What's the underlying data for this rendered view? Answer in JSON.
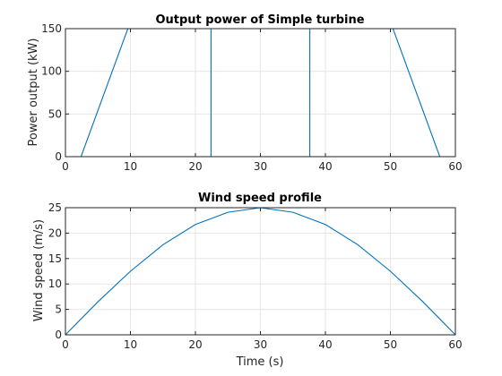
{
  "chart_data": [
    {
      "type": "line",
      "title": "Output power of Simple turbine",
      "xlabel": "",
      "ylabel": "Power output (kW)",
      "xlim": [
        0,
        60
      ],
      "ylim": [
        0,
        150
      ],
      "xticks": [
        "0",
        "10",
        "20",
        "30",
        "40",
        "50",
        "60"
      ],
      "yticks": [
        "0",
        "50",
        "100",
        "150"
      ],
      "grid": true,
      "series": [
        {
          "color": "#0072bd",
          "x": [
            0,
            2.4,
            9.6,
            22.4,
            22.4,
            37.6,
            37.6,
            50.4,
            57.6,
            60
          ],
          "y": [
            0,
            0,
            150,
            150,
            0,
            0,
            150,
            150,
            0,
            0
          ]
        }
      ]
    },
    {
      "type": "line",
      "title": "Wind speed profile",
      "xlabel": "Time (s)",
      "ylabel": "Wind speed (m/s)",
      "xlim": [
        0,
        60
      ],
      "ylim": [
        0,
        25
      ],
      "xticks": [
        "0",
        "10",
        "20",
        "30",
        "40",
        "50",
        "60"
      ],
      "yticks": [
        "0",
        "5",
        "10",
        "15",
        "20",
        "25"
      ],
      "grid": true,
      "series": [
        {
          "color": "#0072bd",
          "x": [
            0,
            5,
            10,
            15,
            20,
            25,
            30,
            35,
            40,
            45,
            50,
            55,
            60
          ],
          "y": [
            0,
            6.5,
            12.5,
            17.7,
            21.7,
            24.1,
            25,
            24.1,
            21.7,
            17.7,
            12.5,
            6.5,
            0
          ]
        }
      ]
    }
  ]
}
